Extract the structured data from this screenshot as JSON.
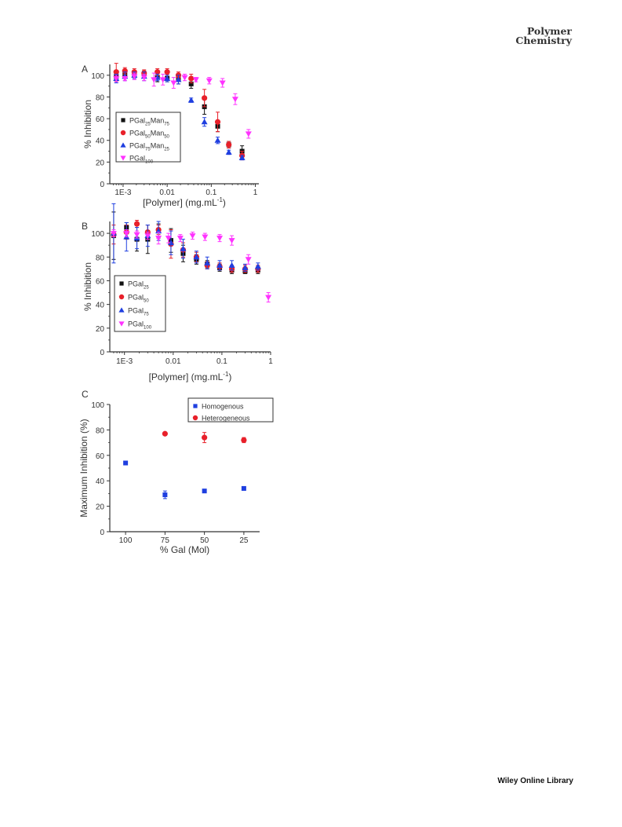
{
  "header": {
    "journal_line1": "Polymer",
    "journal_line2": "Chemistry"
  },
  "footer": {
    "text": "Wiley Online Library"
  },
  "chart_data": [
    {
      "panel": "A",
      "type": "scatter",
      "xscale": "log",
      "xlabel": "[Polymer] (mg.mL",
      "xlabel_sup": "-1",
      "xlabel_end": ")",
      "ylabel": "% Inhibition",
      "xlim": [
        0.0005,
        1.2
      ],
      "ylim": [
        0,
        110
      ],
      "yticks": [
        0,
        20,
        40,
        60,
        80,
        100
      ],
      "xticks": [
        {
          "value": 0.001,
          "label": "1E-3"
        },
        {
          "value": 0.01,
          "label": "0.01"
        },
        {
          "value": 0.1,
          "label": "0.1"
        },
        {
          "value": 1,
          "label": "1"
        }
      ],
      "legend_position": "left",
      "series": [
        {
          "label_base": "PGal",
          "label_sub1": "25",
          "label_mid": "Man",
          "label_sub2": "75",
          "marker": "square",
          "color": "#111111",
          "points": [
            [
              0.0007,
              99,
              4
            ],
            [
              0.0011,
              101,
              4
            ],
            [
              0.0018,
              101,
              3
            ],
            [
              0.003,
              101,
              3
            ],
            [
              0.006,
              98,
              4
            ],
            [
              0.01,
              97,
              3
            ],
            [
              0.018,
              96,
              4
            ],
            [
              0.035,
              92,
              4
            ],
            [
              0.07,
              71,
              7
            ],
            [
              0.14,
              53,
              5
            ],
            [
              0.25,
              36,
              3
            ],
            [
              0.5,
              30,
              5
            ]
          ]
        },
        {
          "label_base": "PGal",
          "label_sub1": "50",
          "label_mid": "Man",
          "label_sub2": "50",
          "marker": "circle",
          "color": "#e8202a",
          "points": [
            [
              0.0007,
              103,
              8
            ],
            [
              0.0011,
              104,
              3
            ],
            [
              0.0018,
              103,
              3
            ],
            [
              0.003,
              102,
              3
            ],
            [
              0.006,
              103,
              3
            ],
            [
              0.01,
              103,
              3
            ],
            [
              0.018,
              100,
              3
            ],
            [
              0.035,
              97,
              4
            ],
            [
              0.07,
              79,
              8
            ],
            [
              0.14,
              57,
              9
            ],
            [
              0.25,
              36,
              3
            ],
            [
              0.5,
              26,
              4
            ]
          ]
        },
        {
          "label_base": "PGal",
          "label_sub1": "75",
          "label_mid": "Man",
          "label_sub2": "25",
          "marker": "triangle",
          "color": "#1f3fe0",
          "points": [
            [
              0.0007,
              97,
              4
            ],
            [
              0.0011,
              99,
              4
            ],
            [
              0.0018,
              100,
              3
            ],
            [
              0.003,
              99,
              4
            ],
            [
              0.006,
              98,
              3
            ],
            [
              0.01,
              97,
              3
            ],
            [
              0.018,
              96,
              4
            ],
            [
              0.035,
              77,
              2
            ],
            [
              0.07,
              57,
              4
            ],
            [
              0.14,
              40,
              3
            ],
            [
              0.25,
              29,
              2
            ],
            [
              0.5,
              24,
              2
            ]
          ]
        },
        {
          "label_base": "PGal",
          "label_sub1": "100",
          "label_mid": "",
          "label_sub2": "",
          "marker": "triangle-down",
          "color": "#ff33ff",
          "points": [
            [
              0.0007,
              97,
              3
            ],
            [
              0.0011,
              97,
              2
            ],
            [
              0.0018,
              99,
              3
            ],
            [
              0.003,
              98,
              3
            ],
            [
              0.005,
              96,
              6
            ],
            [
              0.008,
              96,
              5
            ],
            [
              0.014,
              93,
              5
            ],
            [
              0.025,
              98,
              3
            ],
            [
              0.045,
              96,
              2
            ],
            [
              0.09,
              95,
              3
            ],
            [
              0.18,
              93,
              4
            ],
            [
              0.35,
              78,
              5
            ],
            [
              0.7,
              46,
              4
            ]
          ]
        }
      ]
    },
    {
      "panel": "B",
      "type": "scatter",
      "xscale": "log",
      "xlabel": "[Polymer] (mg.mL",
      "xlabel_sup": "-1",
      "xlabel_end": ")",
      "ylabel": "% Inhibition",
      "xlim": [
        0.0005,
        1
      ],
      "ylim": [
        0,
        110
      ],
      "yticks": [
        0,
        20,
        40,
        60,
        80,
        100
      ],
      "xticks": [
        {
          "value": 0.001,
          "label": "1E-3"
        },
        {
          "value": 0.01,
          "label": "0.01"
        },
        {
          "value": 0.1,
          "label": "0.1"
        },
        {
          "value": 1,
          "label": "1"
        }
      ],
      "legend_position": "left",
      "series": [
        {
          "label_base": "PGal",
          "label_sub1": "25",
          "label_mid": "",
          "label_sub2": "",
          "marker": "square",
          "color": "#111111",
          "points": [
            [
              0.0006,
              98,
              20
            ],
            [
              0.0011,
              105,
              4
            ],
            [
              0.0018,
              95,
              10
            ],
            [
              0.003,
              95,
              12
            ],
            [
              0.005,
              102,
              6
            ],
            [
              0.009,
              94,
              10
            ],
            [
              0.016,
              83,
              7
            ],
            [
              0.03,
              78,
              4
            ],
            [
              0.05,
              74,
              3
            ],
            [
              0.09,
              71,
              3
            ],
            [
              0.16,
              69,
              3
            ],
            [
              0.3,
              68,
              2
            ],
            [
              0.55,
              69,
              3
            ]
          ]
        },
        {
          "label_base": "PGal",
          "label_sub1": "50",
          "label_mid": "",
          "label_sub2": "",
          "marker": "circle",
          "color": "#e8202a",
          "points": [
            [
              0.0006,
              99,
              8
            ],
            [
              0.0011,
              101,
              6
            ],
            [
              0.0018,
              108,
              3
            ],
            [
              0.003,
              101,
              6
            ],
            [
              0.005,
              103,
              4
            ],
            [
              0.009,
              91,
              12
            ],
            [
              0.016,
              86,
              6
            ],
            [
              0.03,
              80,
              4
            ],
            [
              0.05,
              73,
              3
            ],
            [
              0.09,
              72,
              3
            ],
            [
              0.16,
              70,
              3
            ],
            [
              0.3,
              70,
              3
            ],
            [
              0.55,
              70,
              3
            ]
          ]
        },
        {
          "label_base": "PGal",
          "label_sub1": "75",
          "label_mid": "",
          "label_sub2": "",
          "marker": "triangle",
          "color": "#1f3fe0",
          "points": [
            [
              0.0006,
              100,
              25
            ],
            [
              0.0011,
              97,
              12
            ],
            [
              0.0018,
              96,
              9
            ],
            [
              0.003,
              98,
              9
            ],
            [
              0.005,
              102,
              8
            ],
            [
              0.009,
              92,
              10
            ],
            [
              0.016,
              87,
              8
            ],
            [
              0.03,
              80,
              5
            ],
            [
              0.05,
              75,
              5
            ],
            [
              0.09,
              73,
              4
            ],
            [
              0.16,
              73,
              4
            ],
            [
              0.3,
              71,
              3
            ],
            [
              0.55,
              72,
              3
            ]
          ]
        },
        {
          "label_base": "PGal",
          "label_sub1": "100",
          "label_mid": "",
          "label_sub2": "",
          "marker": "triangle-down",
          "color": "#ff33ff",
          "points": [
            [
              0.0006,
              100,
              3
            ],
            [
              0.0011,
              100,
              3
            ],
            [
              0.0018,
              99,
              3
            ],
            [
              0.003,
              98,
              3
            ],
            [
              0.005,
              96,
              5
            ],
            [
              0.008,
              96,
              4
            ],
            [
              0.014,
              96,
              3
            ],
            [
              0.025,
              98,
              3
            ],
            [
              0.045,
              97,
              3
            ],
            [
              0.09,
              96,
              3
            ],
            [
              0.16,
              94,
              4
            ],
            [
              0.35,
              78,
              4
            ],
            [
              0.9,
              46,
              4
            ]
          ]
        }
      ]
    },
    {
      "panel": "C",
      "type": "scatter",
      "xlabel": "% Gal (Mol)",
      "ylabel": "Maximum Inhibition (%)",
      "xlim": [
        110,
        15
      ],
      "ylim": [
        0,
        100
      ],
      "yticks": [
        0,
        20,
        40,
        60,
        80,
        100
      ],
      "xticks": [
        {
          "value": 100,
          "label": "100"
        },
        {
          "value": 75,
          "label": "75"
        },
        {
          "value": 50,
          "label": "50"
        },
        {
          "value": 25,
          "label": "25"
        }
      ],
      "legend_position": "top-right",
      "series": [
        {
          "label_base": "Homogenous",
          "label_sub1": "",
          "label_mid": "",
          "label_sub2": "",
          "marker": "square",
          "color": "#1f3fe0",
          "points": [
            [
              100,
              54,
              0
            ],
            [
              75,
              29,
              3
            ],
            [
              50,
              32,
              0
            ],
            [
              25,
              34,
              0
            ]
          ]
        },
        {
          "label_base": "Heterogeneous",
          "label_sub1": "",
          "label_mid": "",
          "label_sub2": "",
          "marker": "circle",
          "color": "#e8202a",
          "points": [
            [
              75,
              77,
              0
            ],
            [
              50,
              74,
              4
            ],
            [
              25,
              72,
              2
            ]
          ]
        }
      ]
    }
  ]
}
